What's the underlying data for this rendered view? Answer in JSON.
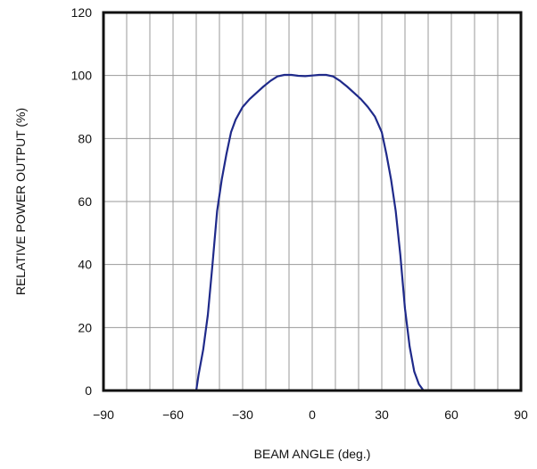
{
  "chart_data": {
    "type": "line",
    "title": "",
    "xlabel": "BEAM ANGLE (deg.)",
    "ylabel": "RELATIVE POWER OUTPUT (%)",
    "xlim": [
      -90,
      90
    ],
    "ylim": [
      0,
      120
    ],
    "xticks": [
      "−90",
      "−60",
      "−30",
      "0",
      "30",
      "60",
      "90"
    ],
    "yticks": [
      "0",
      "20",
      "40",
      "60",
      "80",
      "100",
      "120"
    ],
    "xtick_values": [
      -90,
      -60,
      -30,
      0,
      30,
      60,
      90
    ],
    "ytick_values": [
      0,
      20,
      40,
      60,
      80,
      100,
      120
    ],
    "vertical_grid_step": 10,
    "horizontal_grid_step": 20,
    "grid": true,
    "series": [
      {
        "color": "#1f2a8a",
        "x": [
          -90,
          -50,
          -49,
          -47,
          -45,
          -43,
          -41,
          -39,
          -37,
          -35,
          -33,
          -30,
          -27,
          -24,
          -21,
          -18,
          -15,
          -12,
          -9,
          -6,
          -3,
          0,
          3,
          6,
          9,
          12,
          15,
          18,
          21,
          24,
          27,
          30,
          32,
          34,
          36,
          38,
          40,
          42,
          44,
          46,
          48,
          50,
          90
        ],
        "y": [
          0,
          0,
          5,
          13,
          24,
          40,
          57,
          67,
          75,
          82,
          86,
          90,
          92.5,
          94.5,
          96.5,
          98.3,
          99.7,
          100.2,
          100.2,
          99.9,
          99.8,
          100,
          100.2,
          100.2,
          99.7,
          98.3,
          96.5,
          94.5,
          92.5,
          90,
          87,
          82,
          75,
          67,
          57,
          43,
          26,
          14,
          6,
          2,
          0,
          0,
          0
        ]
      }
    ]
  }
}
